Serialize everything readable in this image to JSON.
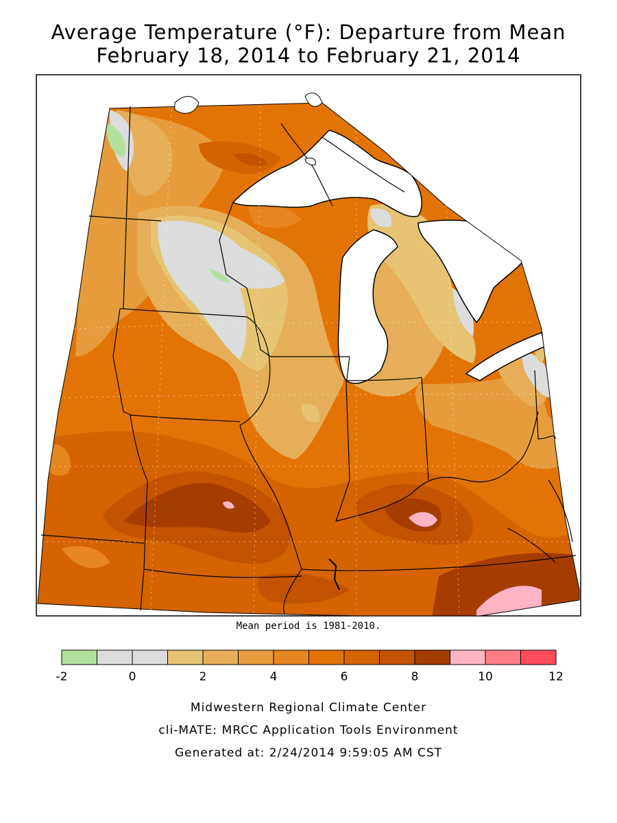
{
  "title": {
    "line1": "Average Temperature (°F): Departure from Mean",
    "line2": "February 18, 2014 to February 21, 2014"
  },
  "map": {
    "mean_period_note": "Mean period is 1981-2010.",
    "regions": [
      "Minnesota",
      "Wisconsin",
      "Michigan",
      "Iowa",
      "Illinois",
      "Indiana",
      "Ohio",
      "Missouri",
      "Kentucky"
    ]
  },
  "legend": {
    "colors": [
      "#b4e09e",
      "#dcdcdc",
      "#dcdcdc",
      "#e6c474",
      "#e6ae58",
      "#e69c3c",
      "#e6861e",
      "#e27405",
      "#d46300",
      "#c25300",
      "#a63d00",
      "#ffb4c4",
      "#ff7d88",
      "#ff4b5c"
    ],
    "tick_labels": [
      "-2",
      "0",
      "2",
      "4",
      "6",
      "8",
      "10",
      "12"
    ]
  },
  "footer": {
    "line1": "Midwestern Regional Climate Center",
    "line2": "cli-MATE: MRCC Application Tools Environment",
    "line3": "Generated at: 2/24/2014 9:59:05 AM CST"
  }
}
